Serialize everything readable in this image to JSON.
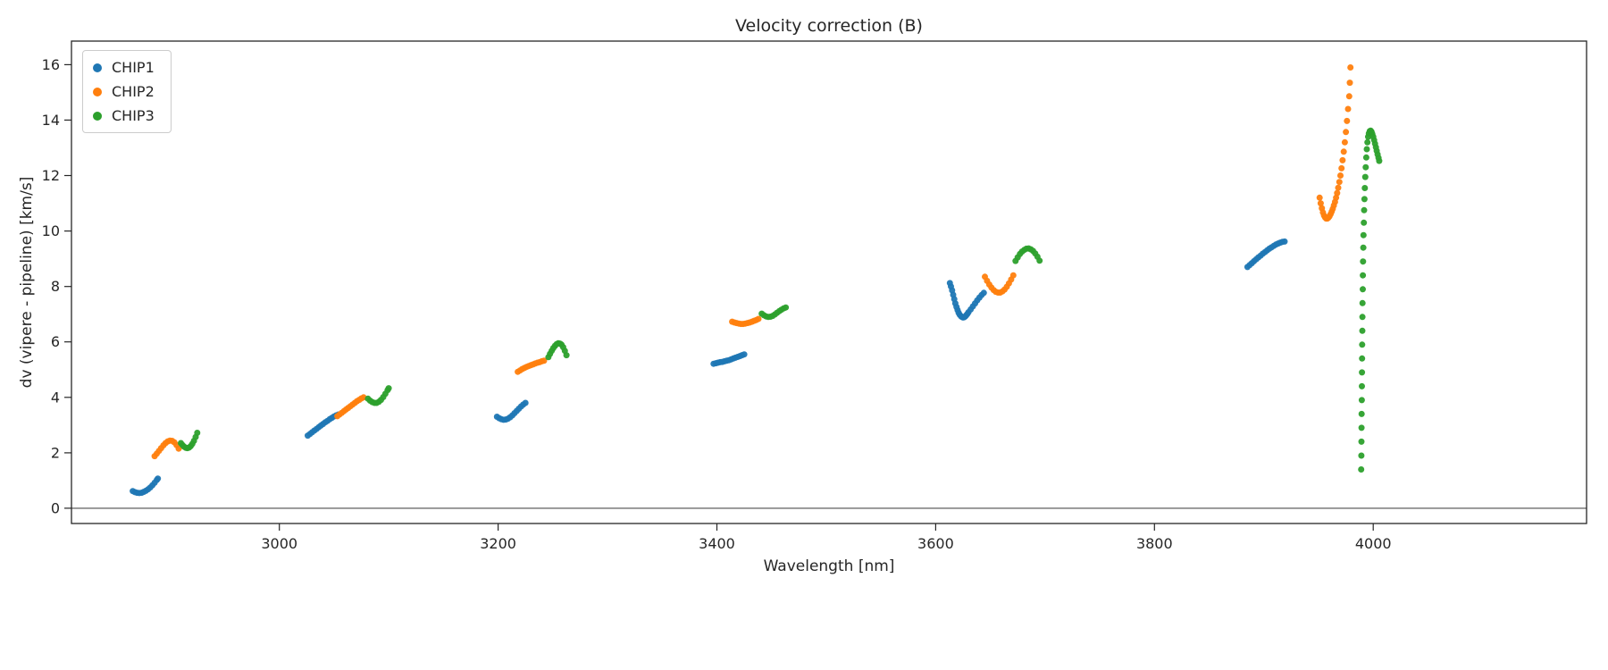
{
  "chart_data": {
    "type": "scatter",
    "title": "Velocity correction (B)",
    "xlabel": "Wavelength [nm]",
    "ylabel": "dv (vipere - pipeline) [km/s]",
    "xlim": [
      2810,
      4195
    ],
    "ylim": [
      -0.55,
      16.85
    ],
    "xticks": [
      3000,
      3200,
      3400,
      3600,
      3800,
      4000
    ],
    "yticks": [
      0,
      2,
      4,
      6,
      8,
      10,
      12,
      14,
      16
    ],
    "grid": false,
    "legend_position": "upper left",
    "axhline": 0,
    "axhline_color": "#6e6e6e",
    "marker_size_px": 3.5,
    "series": [
      {
        "name": "CHIP1",
        "color": "#1f77b4",
        "points": [
          [
            2866,
            0.62
          ],
          [
            2868,
            0.58
          ],
          [
            2870,
            0.56
          ],
          [
            2872,
            0.55
          ],
          [
            2874,
            0.56
          ],
          [
            2876,
            0.59
          ],
          [
            2878,
            0.63
          ],
          [
            2880,
            0.68
          ],
          [
            2882,
            0.75
          ],
          [
            2884,
            0.83
          ],
          [
            2886,
            0.92
          ],
          [
            2888,
            1.02
          ],
          [
            2889,
            1.07
          ],
          [
            3026,
            2.62
          ],
          [
            3028,
            2.68
          ],
          [
            3030,
            2.74
          ],
          [
            3032,
            2.8
          ],
          [
            3034,
            2.86
          ],
          [
            3036,
            2.92
          ],
          [
            3038,
            2.98
          ],
          [
            3040,
            3.04
          ],
          [
            3042,
            3.1
          ],
          [
            3044,
            3.15
          ],
          [
            3046,
            3.21
          ],
          [
            3048,
            3.26
          ],
          [
            3050,
            3.31
          ],
          [
            3052,
            3.35
          ],
          [
            3054,
            3.38
          ],
          [
            3199,
            3.3
          ],
          [
            3201,
            3.25
          ],
          [
            3203,
            3.21
          ],
          [
            3205,
            3.19
          ],
          [
            3207,
            3.2
          ],
          [
            3209,
            3.23
          ],
          [
            3211,
            3.28
          ],
          [
            3213,
            3.35
          ],
          [
            3215,
            3.43
          ],
          [
            3217,
            3.51
          ],
          [
            3219,
            3.59
          ],
          [
            3221,
            3.67
          ],
          [
            3223,
            3.74
          ],
          [
            3225,
            3.8
          ],
          [
            3397,
            5.21
          ],
          [
            3399,
            5.23
          ],
          [
            3401,
            5.25
          ],
          [
            3403,
            5.27
          ],
          [
            3405,
            5.28
          ],
          [
            3407,
            5.3
          ],
          [
            3409,
            5.32
          ],
          [
            3411,
            5.34
          ],
          [
            3413,
            5.37
          ],
          [
            3415,
            5.4
          ],
          [
            3417,
            5.43
          ],
          [
            3419,
            5.46
          ],
          [
            3421,
            5.49
          ],
          [
            3423,
            5.52
          ],
          [
            3425,
            5.55
          ],
          [
            3613,
            8.12
          ],
          [
            3614,
            8.0
          ],
          [
            3615,
            7.86
          ],
          [
            3616,
            7.7
          ],
          [
            3617,
            7.54
          ],
          [
            3618,
            7.39
          ],
          [
            3619,
            7.26
          ],
          [
            3620,
            7.15
          ],
          [
            3621,
            7.05
          ],
          [
            3622,
            6.98
          ],
          [
            3623,
            6.93
          ],
          [
            3624,
            6.9
          ],
          [
            3625,
            6.88
          ],
          [
            3626,
            6.89
          ],
          [
            3627,
            6.92
          ],
          [
            3628,
            6.96
          ],
          [
            3629,
            7.01
          ],
          [
            3630,
            7.07
          ],
          [
            3632,
            7.17
          ],
          [
            3634,
            7.28
          ],
          [
            3636,
            7.39
          ],
          [
            3638,
            7.5
          ],
          [
            3640,
            7.6
          ],
          [
            3642,
            7.69
          ],
          [
            3644,
            7.77
          ],
          [
            3885,
            8.7
          ],
          [
            3887,
            8.77
          ],
          [
            3889,
            8.84
          ],
          [
            3891,
            8.91
          ],
          [
            3893,
            8.98
          ],
          [
            3895,
            9.05
          ],
          [
            3897,
            9.11
          ],
          [
            3899,
            9.18
          ],
          [
            3901,
            9.24
          ],
          [
            3903,
            9.3
          ],
          [
            3905,
            9.36
          ],
          [
            3907,
            9.41
          ],
          [
            3909,
            9.46
          ],
          [
            3911,
            9.51
          ],
          [
            3913,
            9.55
          ],
          [
            3915,
            9.58
          ],
          [
            3917,
            9.61
          ],
          [
            3919,
            9.62
          ]
        ]
      },
      {
        "name": "CHIP2",
        "color": "#ff7f0e",
        "points": [
          [
            2886,
            1.88
          ],
          [
            2888,
            1.97
          ],
          [
            2890,
            2.07
          ],
          [
            2892,
            2.17
          ],
          [
            2894,
            2.27
          ],
          [
            2896,
            2.35
          ],
          [
            2898,
            2.41
          ],
          [
            2900,
            2.44
          ],
          [
            2902,
            2.43
          ],
          [
            2904,
            2.38
          ],
          [
            2906,
            2.28
          ],
          [
            2908,
            2.15
          ],
          [
            3053,
            3.32
          ],
          [
            3055,
            3.38
          ],
          [
            3057,
            3.44
          ],
          [
            3059,
            3.5
          ],
          [
            3061,
            3.56
          ],
          [
            3063,
            3.62
          ],
          [
            3065,
            3.68
          ],
          [
            3067,
            3.74
          ],
          [
            3069,
            3.8
          ],
          [
            3071,
            3.86
          ],
          [
            3073,
            3.91
          ],
          [
            3075,
            3.96
          ],
          [
            3077,
            4.0
          ],
          [
            3218,
            4.92
          ],
          [
            3220,
            4.97
          ],
          [
            3222,
            5.02
          ],
          [
            3224,
            5.06
          ],
          [
            3226,
            5.1
          ],
          [
            3228,
            5.13
          ],
          [
            3230,
            5.16
          ],
          [
            3232,
            5.19
          ],
          [
            3234,
            5.22
          ],
          [
            3236,
            5.25
          ],
          [
            3238,
            5.27
          ],
          [
            3240,
            5.3
          ],
          [
            3242,
            5.32
          ],
          [
            3414,
            6.73
          ],
          [
            3416,
            6.7
          ],
          [
            3418,
            6.68
          ],
          [
            3420,
            6.66
          ],
          [
            3422,
            6.65
          ],
          [
            3424,
            6.65
          ],
          [
            3426,
            6.66
          ],
          [
            3428,
            6.68
          ],
          [
            3430,
            6.7
          ],
          [
            3432,
            6.73
          ],
          [
            3434,
            6.76
          ],
          [
            3436,
            6.79
          ],
          [
            3438,
            6.83
          ],
          [
            3645,
            8.35
          ],
          [
            3647,
            8.2
          ],
          [
            3649,
            8.07
          ],
          [
            3651,
            7.96
          ],
          [
            3653,
            7.87
          ],
          [
            3655,
            7.81
          ],
          [
            3657,
            7.78
          ],
          [
            3659,
            7.78
          ],
          [
            3661,
            7.82
          ],
          [
            3663,
            7.89
          ],
          [
            3665,
            7.99
          ],
          [
            3667,
            8.11
          ],
          [
            3669,
            8.25
          ],
          [
            3671,
            8.4
          ],
          [
            3951,
            11.2
          ],
          [
            3952,
            11.0
          ],
          [
            3953,
            10.82
          ],
          [
            3954,
            10.67
          ],
          [
            3955,
            10.56
          ],
          [
            3956,
            10.49
          ],
          [
            3957,
            10.45
          ],
          [
            3958,
            10.45
          ],
          [
            3959,
            10.48
          ],
          [
            3960,
            10.53
          ],
          [
            3961,
            10.61
          ],
          [
            3962,
            10.7
          ],
          [
            3963,
            10.8
          ],
          [
            3964,
            10.92
          ],
          [
            3965,
            11.05
          ],
          [
            3966,
            11.2
          ],
          [
            3967,
            11.37
          ],
          [
            3968,
            11.56
          ],
          [
            3969,
            11.77
          ],
          [
            3970,
            12.0
          ],
          [
            3971,
            12.26
          ],
          [
            3972,
            12.55
          ],
          [
            3973,
            12.86
          ],
          [
            3974,
            13.2
          ],
          [
            3975,
            13.57
          ],
          [
            3976,
            13.97
          ],
          [
            3977,
            14.4
          ],
          [
            3978,
            14.86
          ],
          [
            3978.6,
            15.35
          ],
          [
            3979.2,
            15.9
          ]
        ]
      },
      {
        "name": "CHIP3",
        "color": "#2ca02c",
        "points": [
          [
            2910,
            2.35
          ],
          [
            2911.5,
            2.28
          ],
          [
            2913,
            2.22
          ],
          [
            2914.5,
            2.18
          ],
          [
            2916,
            2.17
          ],
          [
            2917.5,
            2.19
          ],
          [
            2919,
            2.24
          ],
          [
            2920.5,
            2.32
          ],
          [
            2922,
            2.43
          ],
          [
            2923.5,
            2.57
          ],
          [
            2925,
            2.72
          ],
          [
            3081,
            3.95
          ],
          [
            3083,
            3.88
          ],
          [
            3085,
            3.83
          ],
          [
            3087,
            3.8
          ],
          [
            3089,
            3.8
          ],
          [
            3091,
            3.84
          ],
          [
            3093,
            3.91
          ],
          [
            3095,
            4.01
          ],
          [
            3097,
            4.13
          ],
          [
            3099,
            4.26
          ],
          [
            3100,
            4.33
          ],
          [
            3246,
            5.45
          ],
          [
            3247.5,
            5.57
          ],
          [
            3249,
            5.68
          ],
          [
            3250.5,
            5.78
          ],
          [
            3252,
            5.86
          ],
          [
            3253.5,
            5.92
          ],
          [
            3255,
            5.95
          ],
          [
            3256.5,
            5.94
          ],
          [
            3258,
            5.9
          ],
          [
            3259.5,
            5.81
          ],
          [
            3261,
            5.68
          ],
          [
            3262.5,
            5.52
          ],
          [
            3441,
            7.02
          ],
          [
            3443,
            6.96
          ],
          [
            3445,
            6.92
          ],
          [
            3447,
            6.9
          ],
          [
            3449,
            6.91
          ],
          [
            3451,
            6.94
          ],
          [
            3453,
            6.99
          ],
          [
            3455,
            7.05
          ],
          [
            3457,
            7.11
          ],
          [
            3459,
            7.16
          ],
          [
            3461,
            7.21
          ],
          [
            3463,
            7.24
          ],
          [
            3673,
            8.92
          ],
          [
            3675,
            9.05
          ],
          [
            3677,
            9.17
          ],
          [
            3679,
            9.26
          ],
          [
            3681,
            9.32
          ],
          [
            3683,
            9.36
          ],
          [
            3685,
            9.37
          ],
          [
            3687,
            9.34
          ],
          [
            3689,
            9.28
          ],
          [
            3691,
            9.19
          ],
          [
            3693,
            9.07
          ],
          [
            3695,
            8.93
          ],
          [
            3989,
            1.4
          ],
          [
            3989.1,
            1.9
          ],
          [
            3989.2,
            2.4
          ],
          [
            3989.3,
            2.9
          ],
          [
            3989.4,
            3.4
          ],
          [
            3989.5,
            3.9
          ],
          [
            3989.6,
            4.4
          ],
          [
            3989.7,
            4.9
          ],
          [
            3989.8,
            5.4
          ],
          [
            3989.9,
            5.9
          ],
          [
            3990,
            6.4
          ],
          [
            3990.1,
            6.9
          ],
          [
            3990.2,
            7.4
          ],
          [
            3990.4,
            7.9
          ],
          [
            3990.5,
            8.4
          ],
          [
            3990.7,
            8.9
          ],
          [
            3990.9,
            9.4
          ],
          [
            3991.1,
            9.85
          ],
          [
            3991.4,
            10.3
          ],
          [
            3991.7,
            10.75
          ],
          [
            3992,
            11.15
          ],
          [
            3992.3,
            11.55
          ],
          [
            3992.7,
            11.95
          ],
          [
            3993.1,
            12.3
          ],
          [
            3993.6,
            12.65
          ],
          [
            3994.1,
            12.95
          ],
          [
            3994.7,
            13.2
          ],
          [
            3995.3,
            13.4
          ],
          [
            3996,
            13.52
          ],
          [
            3996.8,
            13.6
          ],
          [
            3997.6,
            13.62
          ],
          [
            3998.4,
            13.58
          ],
          [
            3999.2,
            13.5
          ],
          [
            4000,
            13.4
          ],
          [
            4000.8,
            13.28
          ],
          [
            4001.6,
            13.15
          ],
          [
            4002.4,
            13.02
          ],
          [
            4003.2,
            12.89
          ],
          [
            4004,
            12.76
          ],
          [
            4004.8,
            12.64
          ],
          [
            4005.5,
            12.53
          ]
        ]
      }
    ]
  }
}
